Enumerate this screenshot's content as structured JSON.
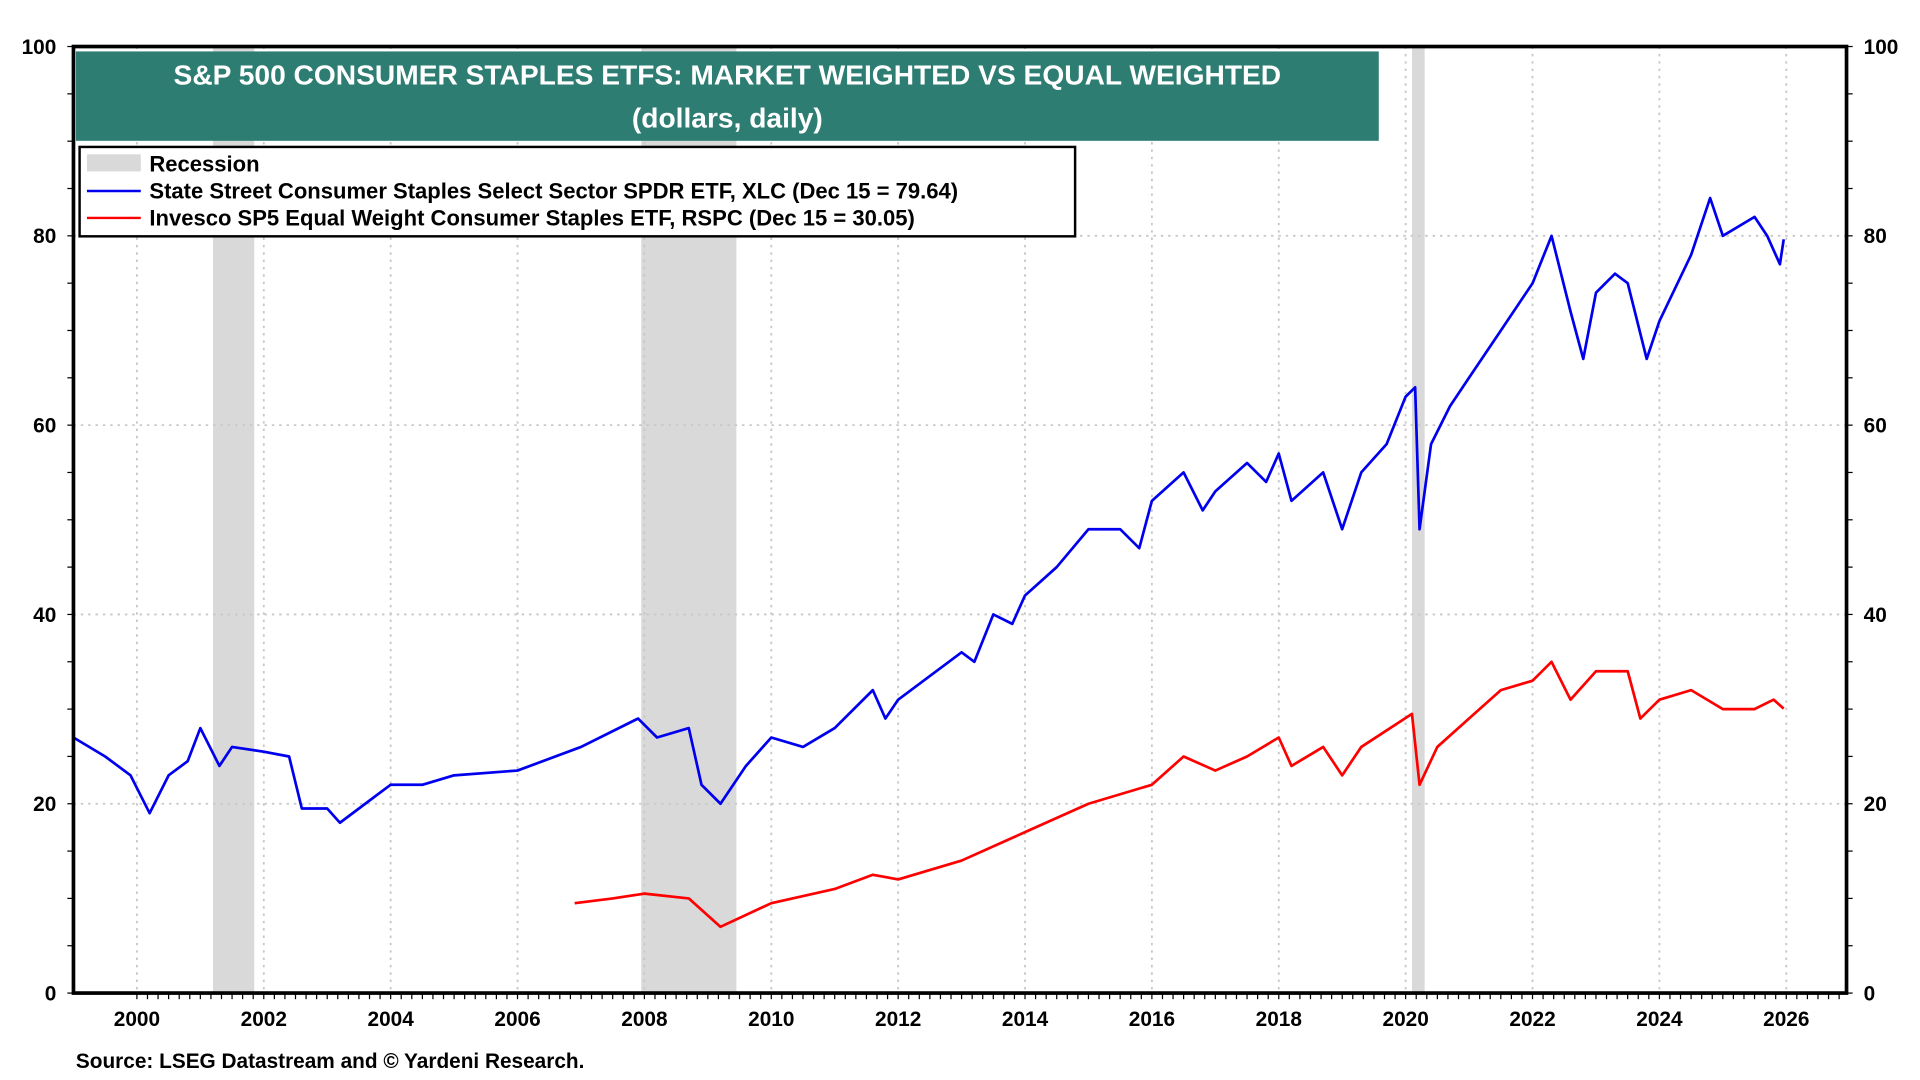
{
  "chart_data": {
    "type": "line",
    "title": "S&P 500 CONSUMER STAPLES ETFS: MARKET WEIGHTED VS EQUAL WEIGHTED",
    "subtitle": "(dollars, daily)",
    "xlim": [
      1999.0,
      2026.95
    ],
    "ylim": [
      0,
      100
    ],
    "x_ticks": [
      2000,
      2002,
      2004,
      2006,
      2008,
      2010,
      2012,
      2014,
      2016,
      2018,
      2020,
      2022,
      2024,
      2026
    ],
    "y_ticks": [
      0,
      20,
      40,
      60,
      80,
      100
    ],
    "grid": true,
    "legend_position": "top-left",
    "recession_label": "Recession",
    "recessions": [
      [
        2001.2,
        2001.85
      ],
      [
        2007.95,
        2009.45
      ],
      [
        2020.1,
        2020.3
      ]
    ],
    "colors": {
      "recession": "#d9d9d9",
      "title_bg": "#2e7d72"
    },
    "series": [
      {
        "name": "State Street Consumer Staples Select Sector SPDR ETF, XLC (Dec 15 = 79.64)",
        "color": "#0000ee",
        "points": [
          [
            1999.0,
            27
          ],
          [
            1999.5,
            25
          ],
          [
            1999.9,
            23
          ],
          [
            2000.2,
            19
          ],
          [
            2000.5,
            23
          ],
          [
            2000.8,
            24.5
          ],
          [
            2001.0,
            28
          ],
          [
            2001.3,
            24
          ],
          [
            2001.5,
            26
          ],
          [
            2002.0,
            25.5
          ],
          [
            2002.4,
            25
          ],
          [
            2002.6,
            19.5
          ],
          [
            2003.0,
            19.5
          ],
          [
            2003.2,
            18
          ],
          [
            2003.6,
            20
          ],
          [
            2004.0,
            22
          ],
          [
            2004.5,
            22
          ],
          [
            2005.0,
            23
          ],
          [
            2006.0,
            23.5
          ],
          [
            2007.0,
            26
          ],
          [
            2007.9,
            29
          ],
          [
            2008.2,
            27
          ],
          [
            2008.7,
            28
          ],
          [
            2008.9,
            22
          ],
          [
            2009.2,
            20
          ],
          [
            2009.6,
            24
          ],
          [
            2010.0,
            27
          ],
          [
            2010.5,
            26
          ],
          [
            2011.0,
            28
          ],
          [
            2011.6,
            32
          ],
          [
            2011.8,
            29
          ],
          [
            2012.0,
            31
          ],
          [
            2013.0,
            36
          ],
          [
            2013.2,
            35
          ],
          [
            2013.5,
            40
          ],
          [
            2013.8,
            39
          ],
          [
            2014.0,
            42
          ],
          [
            2014.5,
            45
          ],
          [
            2015.0,
            49
          ],
          [
            2015.5,
            49
          ],
          [
            2015.8,
            47
          ],
          [
            2016.0,
            52
          ],
          [
            2016.5,
            55
          ],
          [
            2016.8,
            51
          ],
          [
            2017.0,
            53
          ],
          [
            2017.5,
            56
          ],
          [
            2017.8,
            54
          ],
          [
            2018.0,
            57
          ],
          [
            2018.2,
            52
          ],
          [
            2018.7,
            55
          ],
          [
            2019.0,
            49
          ],
          [
            2019.3,
            55
          ],
          [
            2019.7,
            58
          ],
          [
            2020.0,
            63
          ],
          [
            2020.15,
            64
          ],
          [
            2020.22,
            49
          ],
          [
            2020.4,
            58
          ],
          [
            2020.7,
            62
          ],
          [
            2021.0,
            65
          ],
          [
            2021.5,
            70
          ],
          [
            2022.0,
            75
          ],
          [
            2022.3,
            80
          ],
          [
            2022.6,
            72
          ],
          [
            2022.8,
            67
          ],
          [
            2023.0,
            74
          ],
          [
            2023.3,
            76
          ],
          [
            2023.5,
            75
          ],
          [
            2023.8,
            67
          ],
          [
            2024.0,
            71
          ],
          [
            2024.5,
            78
          ],
          [
            2024.8,
            84
          ],
          [
            2025.0,
            80
          ],
          [
            2025.5,
            82
          ],
          [
            2025.7,
            80
          ],
          [
            2025.9,
            77
          ],
          [
            2025.96,
            79.64
          ]
        ]
      },
      {
        "name": "Invesco SP5 Equal Weight Consumer Staples ETF, RSPC (Dec 15 = 30.05)",
        "color": "#ff0000",
        "points": [
          [
            2006.9,
            9.5
          ],
          [
            2007.5,
            10
          ],
          [
            2008.0,
            10.5
          ],
          [
            2008.7,
            10
          ],
          [
            2009.2,
            7
          ],
          [
            2010.0,
            9.5
          ],
          [
            2011.0,
            11
          ],
          [
            2011.6,
            12.5
          ],
          [
            2012.0,
            12
          ],
          [
            2013.0,
            14
          ],
          [
            2014.0,
            17
          ],
          [
            2015.0,
            20
          ],
          [
            2016.0,
            22
          ],
          [
            2016.5,
            25
          ],
          [
            2017.0,
            23.5
          ],
          [
            2017.5,
            25
          ],
          [
            2018.0,
            27
          ],
          [
            2018.2,
            24
          ],
          [
            2018.7,
            26
          ],
          [
            2019.0,
            23
          ],
          [
            2019.3,
            26
          ],
          [
            2020.1,
            29.5
          ],
          [
            2020.22,
            22
          ],
          [
            2020.5,
            26
          ],
          [
            2021.0,
            29
          ],
          [
            2021.5,
            32
          ],
          [
            2022.0,
            33
          ],
          [
            2022.3,
            35
          ],
          [
            2022.6,
            31
          ],
          [
            2023.0,
            34
          ],
          [
            2023.5,
            34
          ],
          [
            2023.7,
            29
          ],
          [
            2024.0,
            31
          ],
          [
            2024.5,
            32
          ],
          [
            2025.0,
            30
          ],
          [
            2025.5,
            30
          ],
          [
            2025.8,
            31
          ],
          [
            2025.96,
            30.05
          ]
        ]
      }
    ],
    "source": "Source: LSEG Datastream and © Yardeni Research."
  }
}
